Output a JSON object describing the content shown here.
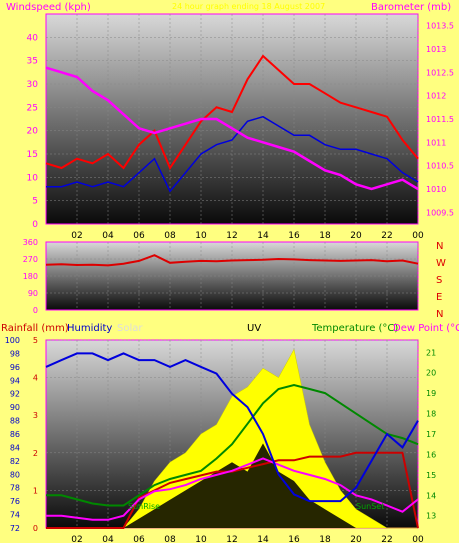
{
  "panel1": {
    "left_label": "Windspeed (kph)",
    "center_label": "24 hour graph ending 18 August 2007",
    "right_label": "Barometer (mb)"
  },
  "panel2": {
    "compass": [
      "N",
      "W",
      "S",
      "E",
      "N"
    ]
  },
  "panel3": {
    "rain_label": "Rainfall (mm)",
    "humidity_label": "Humidity",
    "solar_label": "Solar",
    "uv_label": "UV",
    "temp_label": "Temperature (°C)",
    "dew_label": "Dew Point (°C)",
    "sunrise_label": "SunRise",
    "sunset_label": "SunSet"
  },
  "colors": {
    "background": "#ffff80",
    "windspeed": "#ff0000",
    "wind_avg": "#0000dd",
    "barometer": "#ff00ff",
    "direction": "#dd0000",
    "humidity": "#0000dd",
    "temperature": "#008800",
    "dewpoint": "#ff00ff",
    "rainfall": "#cc0000",
    "solar": "#ffff00",
    "uv": "#000000"
  },
  "chart_data": [
    {
      "type": "line",
      "x_ticks": [
        "02",
        "04",
        "06",
        "08",
        "10",
        "12",
        "14",
        "16",
        "18",
        "20",
        "22",
        "00"
      ],
      "y_left_ticks": [
        0,
        5,
        10,
        15,
        20,
        25,
        30,
        35,
        40
      ],
      "y_left_lim": [
        0,
        45
      ],
      "y_right_ticks": [
        1009.5,
        1010,
        1010.5,
        1011,
        1011.5,
        1012,
        1012.5,
        1013,
        1013.5
      ],
      "y_right_lim": [
        1009.25,
        1013.75
      ],
      "x": [
        0,
        1,
        2,
        3,
        4,
        5,
        6,
        7,
        8,
        9,
        10,
        11,
        12,
        13,
        14,
        15,
        16,
        17,
        18,
        19,
        20,
        21,
        22,
        23,
        24
      ],
      "series": [
        {
          "key": "gust",
          "values": [
            13,
            12,
            14,
            13,
            15,
            12,
            17,
            20,
            12,
            17,
            22,
            25,
            24,
            31,
            36,
            33,
            30,
            30,
            28,
            26,
            25,
            24,
            23,
            18,
            14
          ]
        },
        {
          "key": "avg",
          "values": [
            8,
            8,
            9,
            8,
            9,
            8,
            11,
            14,
            7,
            11,
            15,
            17,
            18,
            22,
            23,
            21,
            19,
            19,
            17,
            16,
            16,
            15,
            14,
            11,
            9
          ]
        },
        {
          "key": "baro",
          "values": [
            1012.6,
            1012.5,
            1012.4,
            1012.1,
            1011.9,
            1011.6,
            1011.3,
            1011.2,
            1011.3,
            1011.4,
            1011.5,
            1011.5,
            1011.3,
            1011.1,
            1011.0,
            1010.9,
            1010.8,
            1010.6,
            1010.4,
            1010.3,
            1010.1,
            1010.0,
            1010.1,
            1010.2,
            1010.0
          ]
        }
      ]
    },
    {
      "type": "line",
      "x_ticks": [],
      "y_ticks": [
        0,
        90,
        180,
        270,
        360
      ],
      "y_lim": [
        0,
        360
      ],
      "x": [
        0,
        1,
        2,
        3,
        4,
        5,
        6,
        7,
        8,
        9,
        10,
        11,
        12,
        13,
        14,
        15,
        16,
        17,
        18,
        19,
        20,
        21,
        22,
        23,
        24
      ],
      "series": [
        {
          "key": "direction",
          "values": [
            240,
            242,
            238,
            240,
            236,
            245,
            260,
            290,
            250,
            255,
            260,
            258,
            262,
            264,
            266,
            270,
            268,
            264,
            262,
            260,
            262,
            264,
            258,
            262,
            245
          ]
        }
      ]
    },
    {
      "type": "line",
      "x_ticks": [
        "02",
        "04",
        "06",
        "08",
        "10",
        "12",
        "14",
        "16",
        "18",
        "20",
        "22",
        "00"
      ],
      "y_left_ticks": [
        72,
        74,
        76,
        78,
        80,
        82,
        84,
        86,
        88,
        90,
        92,
        94,
        96,
        98,
        100
      ],
      "y_left_lim": [
        72,
        100
      ],
      "y_rain_ticks": [
        0,
        1,
        2,
        3,
        4,
        5
      ],
      "y_rain_lim": [
        0,
        5
      ],
      "y_right_ticks": [
        13,
        14,
        15,
        16,
        17,
        18,
        19,
        20,
        21
      ],
      "y_right_lim": [
        12.4,
        21.6
      ],
      "x": [
        0,
        1,
        2,
        3,
        4,
        5,
        6,
        7,
        8,
        9,
        10,
        11,
        12,
        13,
        14,
        15,
        16,
        17,
        18,
        19,
        20,
        21,
        22,
        23,
        24
      ],
      "series": [
        {
          "key": "humidity",
          "values": [
            96,
            97,
            98,
            98,
            97,
            98,
            97,
            97,
            96,
            97,
            96,
            95,
            92,
            90,
            86,
            80,
            77,
            76,
            76,
            76,
            78,
            82,
            86,
            84,
            88
          ]
        },
        {
          "key": "temperature",
          "values": [
            14,
            14,
            13.8,
            13.6,
            13.5,
            13.5,
            14,
            14.5,
            14.8,
            15,
            15.2,
            15.8,
            16.5,
            17.5,
            18.5,
            19.2,
            19.4,
            19.2,
            19,
            18.5,
            18,
            17.5,
            17,
            16.8,
            16.5
          ]
        },
        {
          "key": "dewpoint",
          "values": [
            13,
            13,
            12.9,
            12.8,
            12.8,
            13,
            13.8,
            14.2,
            14.3,
            14.5,
            14.8,
            15,
            15.2,
            15.5,
            15.8,
            15.5,
            15.2,
            15,
            14.8,
            14.5,
            14,
            13.8,
            13.5,
            13.2,
            13.8
          ]
        },
        {
          "key": "rain",
          "values": [
            0,
            0,
            0,
            0,
            0,
            0,
            0.8,
            1.0,
            1.2,
            1.3,
            1.4,
            1.5,
            1.5,
            1.6,
            1.7,
            1.8,
            1.8,
            1.9,
            1.9,
            1.9,
            2.0,
            2.0,
            2.0,
            2.0,
            0
          ]
        },
        {
          "key": "solar",
          "values": [
            0,
            0,
            0,
            0,
            0,
            0,
            0.1,
            0.25,
            0.35,
            0.4,
            0.5,
            0.55,
            0.7,
            0.75,
            0.85,
            0.8,
            0.95,
            0.55,
            0.35,
            0.2,
            0.1,
            0.05,
            0,
            0,
            0
          ]
        },
        {
          "key": "uv",
          "values": [
            0,
            0,
            0,
            0,
            0,
            0,
            0.05,
            0.1,
            0.15,
            0.2,
            0.25,
            0.3,
            0.35,
            0.3,
            0.45,
            0.3,
            0.25,
            0.15,
            0.1,
            0.05,
            0,
            0,
            0,
            0,
            0
          ]
        }
      ]
    }
  ]
}
